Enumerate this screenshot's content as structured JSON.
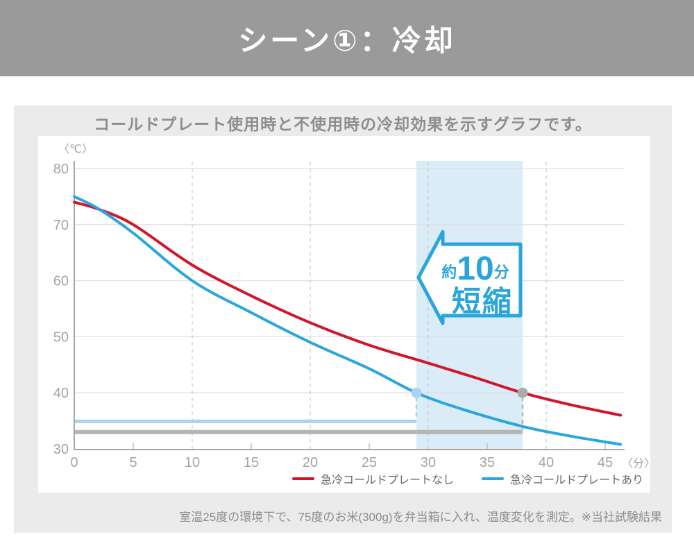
{
  "header": {
    "title": "シーン①：冷却"
  },
  "panel": {
    "subtitle": "コールドプレート使用時と不使用時の冷却効果を示すグラフです。",
    "footnote": "室温25度の環境下で、75度のお米(300g)を弁当箱に入れ、温度変化を測定。※当社試験結果"
  },
  "chart_data": {
    "type": "line",
    "title": "コールドプレート使用時と不使用時の冷却効果を示すグラフ",
    "xlabel": "〈分〉",
    "ylabel": "〈℃〉",
    "xlim": [
      0,
      46.5
    ],
    "ylim": [
      30,
      80
    ],
    "x_ticks": [
      0,
      5,
      10,
      15,
      20,
      25,
      30,
      35,
      40,
      45
    ],
    "y_ticks": [
      30,
      40,
      50,
      60,
      70,
      80
    ],
    "x_gridlines_dashed": [
      10,
      20,
      30,
      40
    ],
    "x_minor_ticks": [
      5,
      15,
      25,
      35,
      45
    ],
    "grid": "on",
    "legend_position": "bottom-right",
    "series": [
      {
        "name": "急冷コールドプレートなし",
        "color": "#d2162a",
        "x": [
          0,
          2,
          5,
          10,
          15,
          20,
          25,
          30,
          34,
          38,
          42,
          46.3
        ],
        "y": [
          74,
          72.8,
          70,
          62.8,
          57.3,
          52.5,
          48.5,
          45.3,
          42.7,
          40,
          37.9,
          36
        ]
      },
      {
        "name": "急冷コールドプレートあり",
        "color": "#2ba6dc",
        "x": [
          0,
          2,
          5,
          10,
          15,
          20,
          25,
          29,
          33,
          38,
          42,
          46.3
        ],
        "y": [
          75,
          72.9,
          68.5,
          60,
          54.3,
          49,
          44.3,
          40,
          37,
          34,
          32.3,
          30.8
        ]
      }
    ],
    "annotations": {
      "highlight_band": {
        "x_start": 29,
        "x_end": 38,
        "color": "#daecf7"
      },
      "markers": [
        {
          "x": 29,
          "y": 40,
          "color": "#a8d4ee"
        },
        {
          "x": 38,
          "y": 40,
          "color": "#ababab"
        }
      ],
      "duration_bars": [
        {
          "x_start": 0,
          "x_end": 29,
          "y": 34.9,
          "color": "#a8d4ee"
        },
        {
          "x_start": 0,
          "x_end": 38,
          "y": 33.0,
          "color": "#b5b5b5"
        }
      ],
      "arrow_label": {
        "prefix": "約",
        "value": "10",
        "unit": "分",
        "line2": "短縮",
        "color": "#29a5dc"
      }
    },
    "colors": {
      "grid": "#e0e0e0",
      "grid_dashed": "#cccccc",
      "axis": "#a6a6a6",
      "tick_text": "#a3a3a3",
      "legend_text": "#666666"
    }
  }
}
